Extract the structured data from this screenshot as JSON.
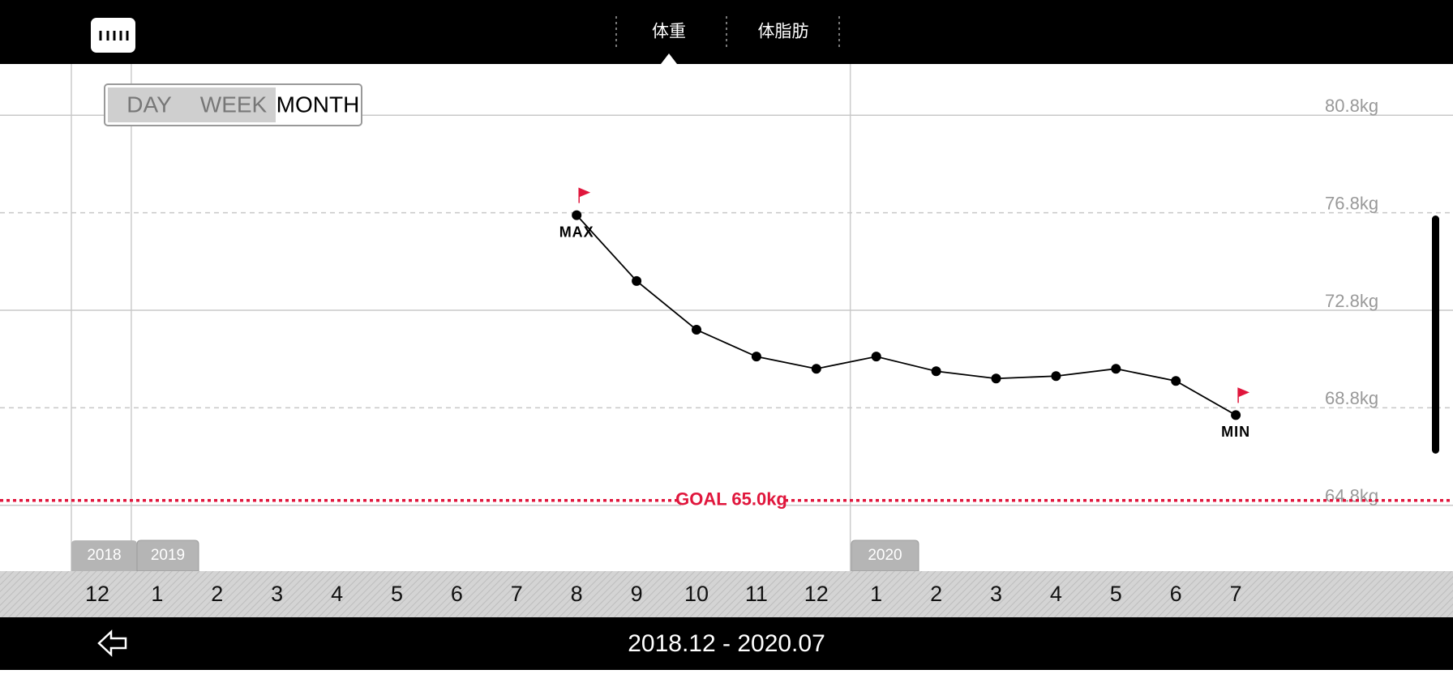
{
  "ui": {
    "tabs": [
      "体重",
      "体脂肪"
    ],
    "periods": [
      "DAY",
      "WEEK",
      "MONTH"
    ],
    "range": "2018.12 - 2020.07",
    "years": [
      "2018",
      "2019",
      "2020"
    ]
  },
  "chart_data": {
    "type": "line",
    "categories": [
      "12",
      "1",
      "2",
      "3",
      "4",
      "5",
      "6",
      "7",
      "8",
      "9",
      "10",
      "11",
      "12",
      "1",
      "2",
      "3",
      "4",
      "5",
      "6",
      "7"
    ],
    "values": [
      null,
      null,
      null,
      null,
      null,
      null,
      null,
      null,
      76.7,
      74.0,
      72.0,
      70.9,
      70.4,
      70.9,
      70.3,
      70.0,
      70.1,
      70.4,
      69.9,
      68.5
    ],
    "color": "#000000",
    "ylim": [
      62.1,
      82.9
    ],
    "yticks": [
      {
        "value": 64.8,
        "label": "64.8kg"
      },
      {
        "value": 68.8,
        "label": "68.8kg"
      },
      {
        "value": 72.8,
        "label": "72.8kg"
      },
      {
        "value": 76.8,
        "label": "76.8kg"
      },
      {
        "value": 80.8,
        "label": "80.8kg"
      }
    ],
    "grid": true,
    "goal": {
      "value": 65.0,
      "label": "GOAL 65.0kg",
      "color": "#e0163c"
    },
    "max_label": "MAX",
    "min_label": "MIN"
  }
}
